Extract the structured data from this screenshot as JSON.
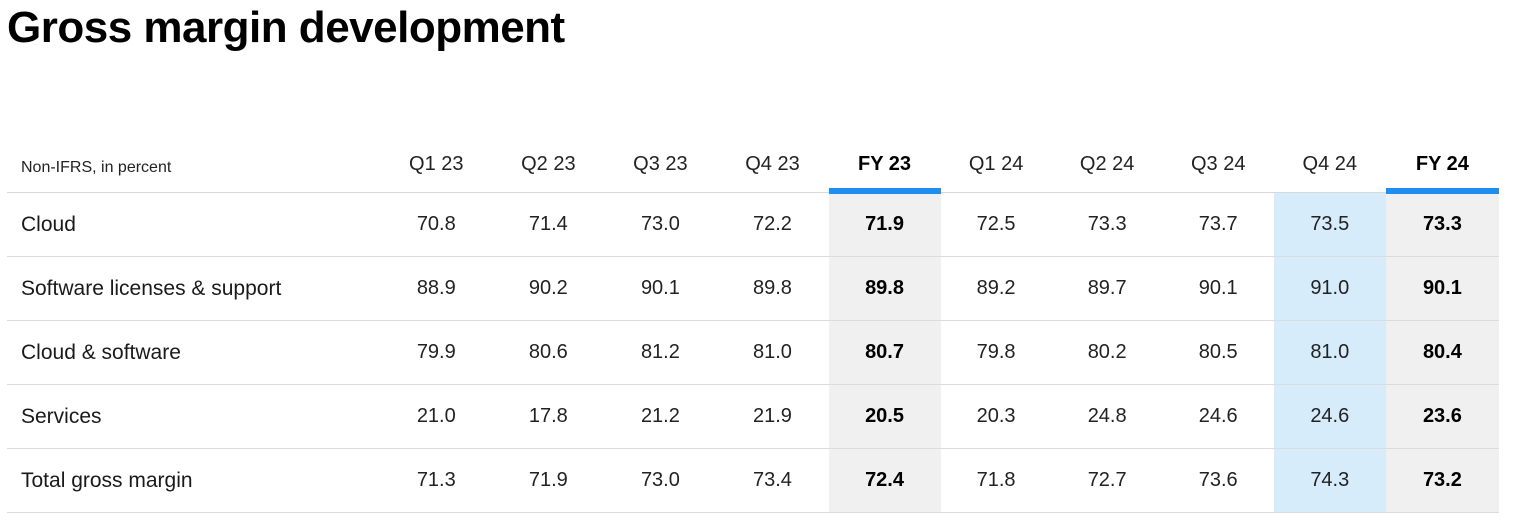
{
  "title": "Gross margin development",
  "table": {
    "unit_label": "Non-IFRS, in percent",
    "columns": [
      "Q1 23",
      "Q2 23",
      "Q3 23",
      "Q4 23",
      "FY 23",
      "Q1 24",
      "Q2 24",
      "Q3 24",
      "Q4 24",
      "FY 24"
    ],
    "rows": [
      {
        "label": "Cloud",
        "values": [
          "70.8",
          "71.4",
          "73.0",
          "72.2",
          "71.9",
          "72.5",
          "73.3",
          "73.7",
          "73.5",
          "73.3"
        ]
      },
      {
        "label": "Software licenses & support",
        "values": [
          "88.9",
          "90.2",
          "90.1",
          "89.8",
          "89.8",
          "89.2",
          "89.7",
          "90.1",
          "91.0",
          "90.1"
        ]
      },
      {
        "label": "Cloud & software",
        "values": [
          "79.9",
          "80.6",
          "81.2",
          "81.0",
          "80.7",
          "79.8",
          "80.2",
          "80.5",
          "81.0",
          "80.4"
        ]
      },
      {
        "label": "Services",
        "values": [
          "21.0",
          "17.8",
          "21.2",
          "21.9",
          "20.5",
          "20.3",
          "24.8",
          "24.6",
          "24.6",
          "23.6"
        ]
      },
      {
        "label": "Total gross margin",
        "values": [
          "71.3",
          "71.9",
          "73.0",
          "73.4",
          "72.4",
          "71.8",
          "72.7",
          "73.6",
          "74.3",
          "73.2"
        ]
      }
    ]
  },
  "colors": {
    "fy_underline": "#1f8ef1",
    "fy_shading": "#f0f0f0",
    "q4_highlight": "#d6ecfb"
  }
}
